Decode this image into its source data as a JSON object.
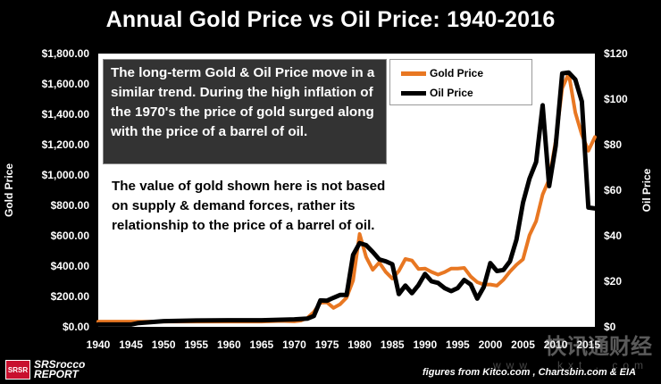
{
  "title": "Annual Gold Price vs Oil Price: 1940-2016",
  "note": {
    "paragraph1": "The long-term Gold & Oil Price move  in a similar trend.  During the high inflation of the 1970's the price of gold surged along with the price of a barrel of oil.",
    "paragraph2": "The value of gold shown here is not based on supply & demand forces, rather its relationship to the price of a barrel of oil."
  },
  "footer": {
    "logo_badge": "SRSR",
    "logo_line1": "SRSrocco",
    "logo_line2": "REPORT",
    "source": "figures from Kitco.com , Chartsbin.com  & EIA",
    "watermark": "快讯通财经",
    "watermark_url": "www . kxt . com"
  },
  "colors": {
    "background": "#000000",
    "plot_area": "#ffffff",
    "gold": "#e87722",
    "oil": "#000000"
  },
  "chart_data": {
    "type": "line",
    "title": "Annual Gold Price vs Oil Price: 1940-2016",
    "xlabel": "",
    "ylabel": "Gold Price",
    "y2label": "Oil Price",
    "xlim": [
      1940,
      2016
    ],
    "ylim": [
      0,
      1800
    ],
    "y2lim": [
      0,
      120
    ],
    "x_ticks": [
      1940,
      1945,
      1950,
      1955,
      1960,
      1965,
      1970,
      1975,
      1980,
      1985,
      1990,
      1995,
      2000,
      2005,
      2010,
      2015
    ],
    "y_ticks": [
      "$0.00",
      "$200.00",
      "$400.00",
      "$600.00",
      "$800.00",
      "$1,000.00",
      "$1,200.00",
      "$1,400.00",
      "$1,600.00",
      "$1,800.00"
    ],
    "y2_ticks": [
      "$0",
      "$20",
      "$40",
      "$60",
      "$80",
      "$100",
      "$120"
    ],
    "legend_position": "top-right",
    "grid": false,
    "series": [
      {
        "name": "Gold Price",
        "axis": "left",
        "color": "#e87722",
        "x": [
          1940,
          1945,
          1950,
          1955,
          1960,
          1965,
          1968,
          1970,
          1971,
          1972,
          1973,
          1974,
          1975,
          1976,
          1977,
          1978,
          1979,
          1980,
          1981,
          1982,
          1983,
          1984,
          1985,
          1986,
          1987,
          1988,
          1989,
          1990,
          1991,
          1992,
          1993,
          1994,
          1995,
          1996,
          1997,
          1998,
          1999,
          2000,
          2001,
          2002,
          2003,
          2004,
          2005,
          2006,
          2007,
          2008,
          2009,
          2010,
          2011,
          2012,
          2013,
          2014,
          2015,
          2016
        ],
        "values": [
          35,
          35,
          35,
          35,
          35,
          35,
          39,
          36,
          41,
          59,
          98,
          159,
          161,
          125,
          148,
          193,
          306,
          612,
          460,
          376,
          424,
          361,
          318,
          368,
          447,
          437,
          381,
          384,
          362,
          344,
          360,
          384,
          384,
          388,
          331,
          294,
          279,
          279,
          271,
          310,
          364,
          409,
          445,
          604,
          696,
          872,
          972,
          1225,
          1572,
          1669,
          1411,
          1266,
          1160,
          1250
        ]
      },
      {
        "name": "Oil Price",
        "axis": "right",
        "color": "#000000",
        "x": [
          1940,
          1945,
          1946,
          1950,
          1955,
          1960,
          1965,
          1970,
          1972,
          1973,
          1974,
          1975,
          1976,
          1977,
          1978,
          1979,
          1980,
          1981,
          1982,
          1983,
          1984,
          1985,
          1986,
          1987,
          1988,
          1989,
          1990,
          1991,
          1992,
          1993,
          1994,
          1995,
          1996,
          1997,
          1998,
          1999,
          2000,
          2001,
          2002,
          2003,
          2004,
          2005,
          2006,
          2007,
          2008,
          2009,
          2010,
          2011,
          2012,
          2013,
          2014,
          2015,
          2016
        ],
        "values": [
          1.0,
          1.0,
          1.6,
          2.5,
          2.8,
          2.9,
          2.9,
          3.3,
          3.6,
          4.8,
          11.6,
          11.5,
          12.8,
          14.0,
          14.0,
          31.6,
          36.8,
          35.9,
          32.9,
          29.6,
          28.8,
          27.5,
          14.4,
          18.1,
          14.8,
          18.3,
          23.2,
          20.0,
          19.3,
          17.0,
          15.7,
          17.0,
          20.6,
          18.6,
          12.4,
          17.5,
          28.0,
          24.5,
          25.0,
          28.8,
          38.3,
          54.5,
          65.1,
          72.4,
          97.3,
          61.8,
          79.5,
          111.3,
          111.7,
          108.6,
          99.0,
          52.4,
          52.0
        ]
      }
    ]
  }
}
